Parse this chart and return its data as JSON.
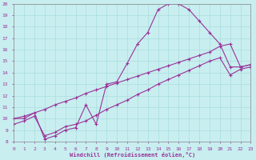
{
  "xlabel": "Windchill (Refroidissement éolien,°C)",
  "bg_color": "#c8eef0",
  "grid_color": "#aadddd",
  "line_color": "#993399",
  "marker": "+",
  "xlim": [
    0,
    23
  ],
  "ylim": [
    8,
    20
  ],
  "xticks": [
    0,
    1,
    2,
    3,
    4,
    5,
    6,
    7,
    8,
    9,
    10,
    11,
    12,
    13,
    14,
    15,
    16,
    17,
    18,
    19,
    20,
    21,
    22,
    23
  ],
  "yticks": [
    8,
    9,
    10,
    11,
    12,
    13,
    14,
    15,
    16,
    17,
    18,
    19,
    20
  ],
  "line1_x": [
    0,
    1,
    2,
    3,
    4,
    5,
    6,
    7,
    8,
    9,
    10,
    11,
    12,
    13,
    14,
    15,
    16,
    17,
    18,
    19,
    20,
    21,
    22,
    23
  ],
  "line1_y": [
    10.0,
    10.0,
    10.5,
    8.2,
    8.5,
    9.0,
    9.2,
    11.2,
    9.5,
    13.0,
    13.2,
    14.8,
    16.5,
    17.5,
    19.5,
    20.0,
    20.0,
    19.5,
    18.5,
    17.5,
    16.5,
    14.5,
    14.5,
    14.7
  ],
  "line2_x": [
    0,
    1,
    3,
    4,
    5,
    6,
    7,
    8,
    9,
    10,
    11,
    12,
    13,
    14,
    15,
    16,
    17,
    18,
    19,
    20,
    21,
    22,
    23
  ],
  "line2_y": [
    10.0,
    10.2,
    10.8,
    11.2,
    11.5,
    11.8,
    12.2,
    12.5,
    12.8,
    13.1,
    13.4,
    13.7,
    14.0,
    14.3,
    14.6,
    14.9,
    15.2,
    15.5,
    15.8,
    16.3,
    16.5,
    14.5,
    14.7
  ],
  "line3_x": [
    0,
    1,
    2,
    3,
    4,
    5,
    6,
    7,
    8,
    9,
    10,
    11,
    12,
    13,
    14,
    15,
    16,
    17,
    18,
    19,
    20,
    21,
    22,
    23
  ],
  "line3_y": [
    9.5,
    9.8,
    10.2,
    8.5,
    8.8,
    9.3,
    9.5,
    9.8,
    10.3,
    10.8,
    11.2,
    11.6,
    12.1,
    12.5,
    13.0,
    13.4,
    13.8,
    14.2,
    14.6,
    15.0,
    15.3,
    13.8,
    14.3,
    14.5
  ]
}
